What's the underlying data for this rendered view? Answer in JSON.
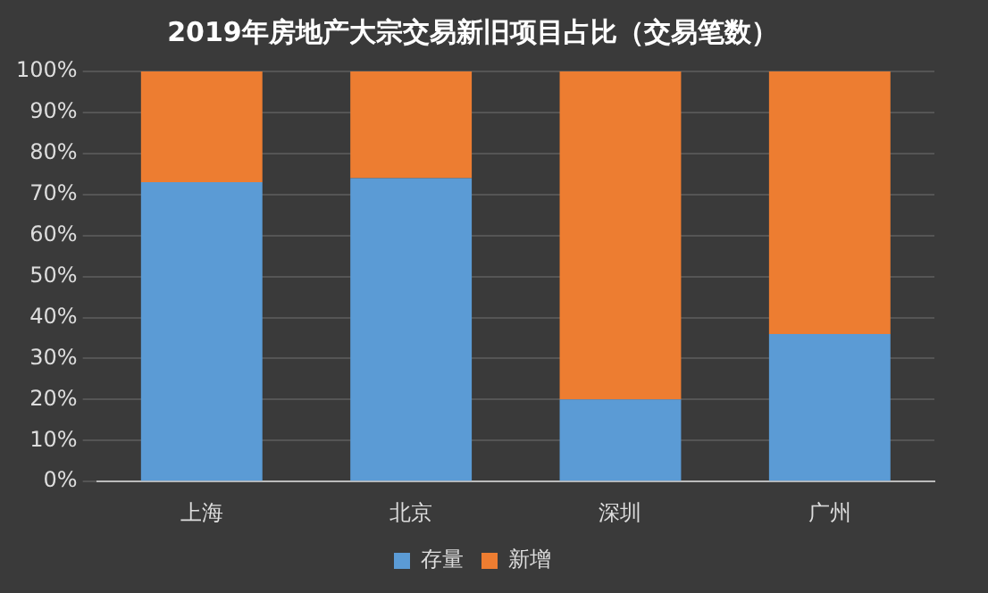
{
  "chart_data": {
    "type": "bar",
    "title": "2019年房地产大宗交易新旧项目占比（交易笔数）",
    "categories": [
      "上海",
      "北京",
      "深圳",
      "广州"
    ],
    "stacked": true,
    "series": [
      {
        "name": "存量",
        "color": "#5b9bd5",
        "values": [
          73,
          74,
          20,
          36
        ]
      },
      {
        "name": "新增",
        "color": "#ed7d31",
        "values": [
          27,
          26,
          80,
          64
        ]
      }
    ],
    "ylim": [
      0,
      100
    ],
    "yticks": [
      {
        "value": 0,
        "label": "0%"
      },
      {
        "value": 10,
        "label": "10%"
      },
      {
        "value": 20,
        "label": "20%"
      },
      {
        "value": 30,
        "label": "30%"
      },
      {
        "value": 40,
        "label": "40%"
      },
      {
        "value": 50,
        "label": "50%"
      },
      {
        "value": 60,
        "label": "60%"
      },
      {
        "value": 70,
        "label": "70%"
      },
      {
        "value": 80,
        "label": "80%"
      },
      {
        "value": 90,
        "label": "90%"
      },
      {
        "value": 100,
        "label": "100%"
      }
    ],
    "grid": "y",
    "legend": "bottom"
  }
}
